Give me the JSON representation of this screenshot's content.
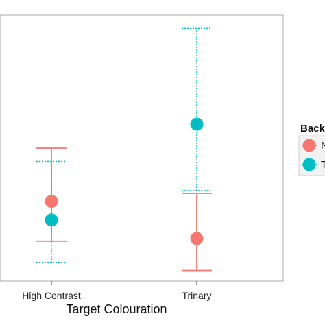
{
  "chart_data": {
    "type": "scatter",
    "categories": [
      "High Contrast",
      "Trinary"
    ],
    "xlabel": "Target Colouration",
    "ylabel": "",
    "ylim": [
      0,
      100
    ],
    "grid": false,
    "legend": {
      "title": "Back",
      "placement": "right",
      "entries": [
        "N",
        "T"
      ]
    },
    "series": [
      {
        "name": "N",
        "color": "#F8766D",
        "line_style": "solid",
        "points": [
          {
            "category": "High Contrast",
            "y": 30,
            "low": 15,
            "high": 50
          },
          {
            "category": "Trinary",
            "y": 16,
            "low": 4,
            "high": 33
          }
        ]
      },
      {
        "name": "T",
        "color": "#00BFC4",
        "line_style": "dotted",
        "points": [
          {
            "category": "High Contrast",
            "y": 23,
            "low": 7,
            "high": 45
          },
          {
            "category": "Trinary",
            "y": 59,
            "low": 34,
            "high": 95
          }
        ]
      }
    ]
  }
}
